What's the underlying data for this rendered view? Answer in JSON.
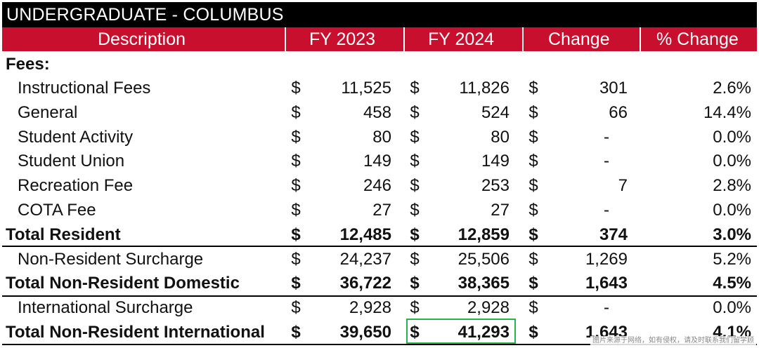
{
  "banner_title": "UNDERGRADUATE - COLUMBUS",
  "headers": {
    "description": "Description",
    "fy2023": "FY 2023",
    "fy2024": "FY 2024",
    "change": "Change",
    "pct_change": "% Change"
  },
  "section_label": "Fees:",
  "currency_symbol": "$",
  "rows": [
    {
      "label": "Instructional Fees",
      "fy2023": "11,525",
      "fy2024": "11,826",
      "change": "301",
      "pct": "2.6%",
      "bold": false
    },
    {
      "label": "General",
      "fy2023": "458",
      "fy2024": "524",
      "change": "66",
      "pct": "14.4%",
      "bold": false
    },
    {
      "label": "Student Activity",
      "fy2023": "80",
      "fy2024": "80",
      "change": "-",
      "pct": "0.0%",
      "bold": false
    },
    {
      "label": "Student Union",
      "fy2023": "149",
      "fy2024": "149",
      "change": "-",
      "pct": "0.0%",
      "bold": false
    },
    {
      "label": "Recreation Fee",
      "fy2023": "246",
      "fy2024": "253",
      "change": "7",
      "pct": "2.8%",
      "bold": false
    },
    {
      "label": "COTA Fee",
      "fy2023": "27",
      "fy2024": "27",
      "change": "-",
      "pct": "0.0%",
      "bold": false
    },
    {
      "label": "Total Resident",
      "fy2023": "12,485",
      "fy2024": "12,859",
      "change": "374",
      "pct": "3.0%",
      "bold": true
    },
    {
      "label": "Non-Resident Surcharge",
      "fy2023": "24,237",
      "fy2024": "25,506",
      "change": "1,269",
      "pct": "5.2%",
      "bold": false
    },
    {
      "label": "Total Non-Resident Domestic",
      "fy2023": "36,722",
      "fy2024": "38,365",
      "change": "1,643",
      "pct": "4.5%",
      "bold": true
    },
    {
      "label": "International Surcharge",
      "fy2023": "2,928",
      "fy2024": "2,928",
      "change": "-",
      "pct": "0.0%",
      "bold": false
    },
    {
      "label": "Total Non-Resident International",
      "fy2023": "39,650",
      "fy2024": "41,293",
      "change": "1,643",
      "pct": "4.1%",
      "bold": true
    }
  ],
  "watermark": "图片来源于网络，如有侵权，请及时联系我们留学顾",
  "colors": {
    "header_red": "#c8102e",
    "banner_black": "#000000",
    "highlight_green": "#2bb24c"
  }
}
